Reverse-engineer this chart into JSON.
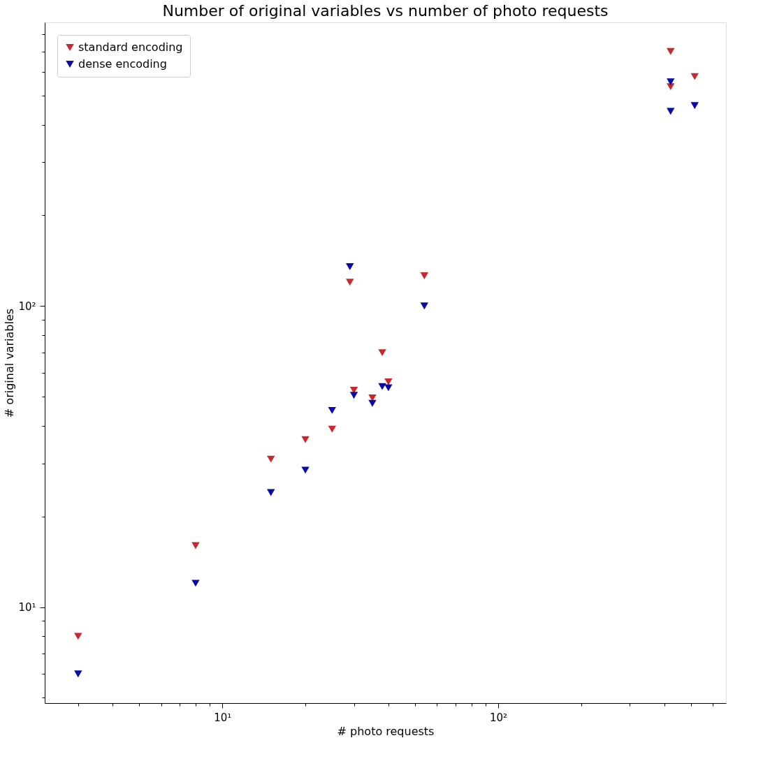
{
  "chart_data": {
    "type": "scatter",
    "title": "Number of original variables vs number of photo requests",
    "xlabel": "# photo requests",
    "ylabel": "# original variables",
    "x": [
      3,
      8,
      15,
      20,
      25,
      29,
      30,
      35,
      38,
      40,
      54,
      422,
      422,
      516
    ],
    "series": [
      {
        "name": "standard encoding",
        "color": "#c8282e",
        "values": [
          8.0,
          16,
          31,
          36,
          39,
          120,
          52.5,
          49.5,
          70,
          56,
          126,
          700,
          535,
          578
        ]
      },
      {
        "name": "dense encoding",
        "color": "#0a0aaa",
        "values": [
          6.0,
          12,
          24,
          28.5,
          45,
          135,
          50.5,
          47.5,
          54,
          53.5,
          100,
          443,
          555,
          463
        ]
      }
    ],
    "log": "xy",
    "xlim": [
      2.27,
      670
    ],
    "ylim": [
      4.8,
      875
    ],
    "xticks": [
      {
        "value": 3,
        "label": null
      },
      {
        "value": 4,
        "label": null
      },
      {
        "value": 5,
        "label": null
      },
      {
        "value": 6,
        "label": null
      },
      {
        "value": 7,
        "label": null
      },
      {
        "value": 8,
        "label": null
      },
      {
        "value": 9,
        "label": null
      },
      {
        "value": 10,
        "label": "10¹"
      },
      {
        "value": 20,
        "label": null
      },
      {
        "value": 30,
        "label": null
      },
      {
        "value": 40,
        "label": null
      },
      {
        "value": 50,
        "label": null
      },
      {
        "value": 60,
        "label": null
      },
      {
        "value": 70,
        "label": null
      },
      {
        "value": 80,
        "label": null
      },
      {
        "value": 90,
        "label": null
      },
      {
        "value": 100,
        "label": "10²"
      },
      {
        "value": 200,
        "label": null
      },
      {
        "value": 300,
        "label": null
      },
      {
        "value": 400,
        "label": null
      },
      {
        "value": 500,
        "label": null
      },
      {
        "value": 600,
        "label": null
      }
    ],
    "yticks": [
      {
        "value": 5,
        "label": null
      },
      {
        "value": 6,
        "label": null
      },
      {
        "value": 7,
        "label": null
      },
      {
        "value": 8,
        "label": null
      },
      {
        "value": 9,
        "label": null
      },
      {
        "value": 10,
        "label": "10¹"
      },
      {
        "value": 20,
        "label": null
      },
      {
        "value": 30,
        "label": null
      },
      {
        "value": 40,
        "label": null
      },
      {
        "value": 50,
        "label": null
      },
      {
        "value": 60,
        "label": null
      },
      {
        "value": 70,
        "label": null
      },
      {
        "value": 80,
        "label": null
      },
      {
        "value": 90,
        "label": null
      },
      {
        "value": 100,
        "label": "10²"
      },
      {
        "value": 200,
        "label": null
      },
      {
        "value": 300,
        "label": null
      },
      {
        "value": 400,
        "label": null
      },
      {
        "value": 500,
        "label": null
      },
      {
        "value": 600,
        "label": null
      },
      {
        "value": 700,
        "label": null
      },
      {
        "value": 800,
        "label": null
      }
    ],
    "legend": "top left",
    "grid": false,
    "marker": "triangle"
  }
}
